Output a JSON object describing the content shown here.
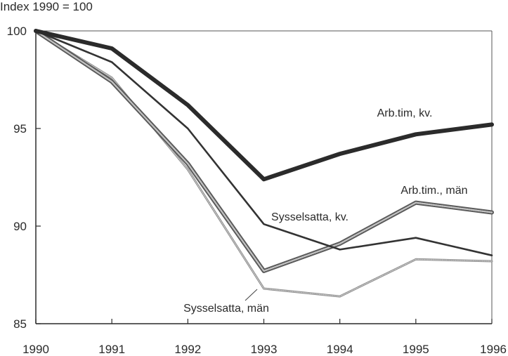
{
  "chart_data": {
    "type": "line",
    "title": "",
    "ylabel": "Index 1990 = 100",
    "xlabel": "",
    "x": [
      1990,
      1991,
      1992,
      1993,
      1994,
      1995,
      1996
    ],
    "x_tick_labels": [
      "1990",
      "1991",
      "1992",
      "1993",
      "1994",
      "1995",
      "1996"
    ],
    "y_ticks": [
      85,
      90,
      95,
      100
    ],
    "y_tick_labels": [
      "85",
      "90",
      "95",
      "100"
    ],
    "xlim": [
      1990,
      1996
    ],
    "ylim": [
      85,
      100
    ],
    "grid": false,
    "legend": "none",
    "series": [
      {
        "id": "arb-tim-kv",
        "name": "Arb.tim, kv.",
        "values": [
          100,
          99.1,
          96.2,
          92.4,
          93.7,
          94.7,
          95.2
        ],
        "color": "#2b2b2b",
        "style": "thick-solid"
      },
      {
        "id": "sysselsatta-kv",
        "name": "Sysselsatta, kv.",
        "values": [
          100,
          98.4,
          95.0,
          90.1,
          88.8,
          89.4,
          88.5
        ],
        "color": "#333333",
        "style": "solid"
      },
      {
        "id": "arb-tim-man",
        "name": "Arb.tim., män",
        "values": [
          100,
          97.4,
          93.2,
          87.7,
          89.1,
          91.2,
          90.7
        ],
        "color": "#8a8a8a",
        "style": "thick-dotted"
      },
      {
        "id": "sysselsatta-man",
        "name": "Sysselsatta, män",
        "values": [
          100,
          97.6,
          92.9,
          86.8,
          86.4,
          88.3,
          88.2
        ],
        "color": "#9a9a9a",
        "style": "thin-dotted"
      }
    ]
  }
}
